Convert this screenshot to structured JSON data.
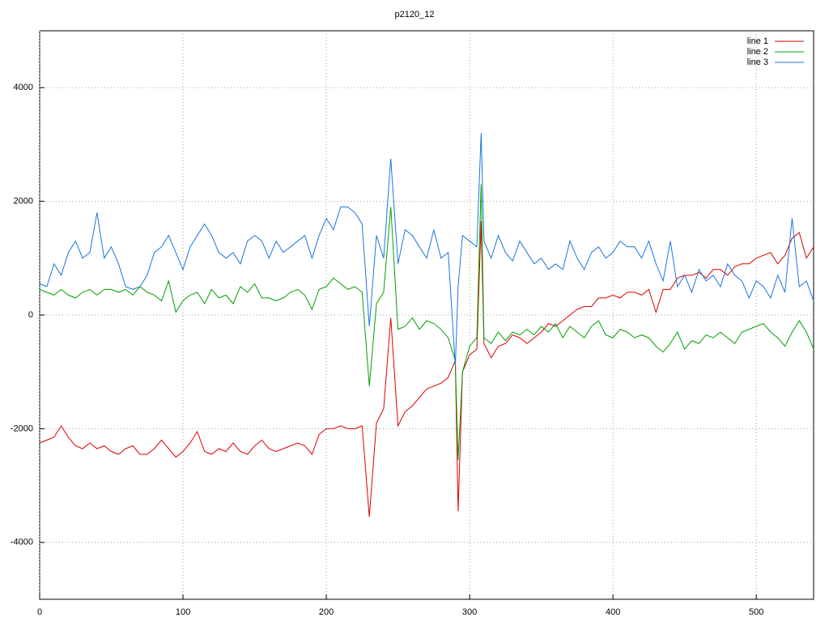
{
  "chart_data": {
    "type": "line",
    "title": "p2120_12",
    "x": [
      0,
      5,
      10,
      15,
      20,
      25,
      30,
      35,
      40,
      45,
      50,
      55,
      60,
      65,
      70,
      75,
      80,
      85,
      90,
      95,
      100,
      105,
      110,
      115,
      120,
      125,
      130,
      135,
      140,
      145,
      150,
      155,
      160,
      165,
      170,
      175,
      180,
      185,
      190,
      195,
      200,
      205,
      210,
      215,
      220,
      225,
      230,
      235,
      240,
      245,
      250,
      255,
      260,
      265,
      270,
      275,
      280,
      285,
      290,
      292,
      295,
      300,
      305,
      308,
      310,
      315,
      320,
      325,
      330,
      335,
      340,
      345,
      350,
      355,
      360,
      365,
      370,
      375,
      380,
      385,
      390,
      395,
      400,
      405,
      410,
      415,
      420,
      425,
      430,
      435,
      440,
      445,
      450,
      455,
      460,
      465,
      470,
      475,
      480,
      485,
      490,
      495,
      500,
      505,
      510,
      515,
      520,
      525,
      530,
      535,
      540
    ],
    "series": [
      {
        "name": "line 1",
        "color": "#dd0000",
        "values": [
          -2250,
          -2200,
          -2150,
          -1950,
          -2150,
          -2300,
          -2350,
          -2250,
          -2350,
          -2300,
          -2400,
          -2450,
          -2350,
          -2300,
          -2450,
          -2450,
          -2350,
          -2200,
          -2350,
          -2500,
          -2400,
          -2250,
          -2050,
          -2400,
          -2450,
          -2350,
          -2400,
          -2250,
          -2400,
          -2450,
          -2300,
          -2200,
          -2350,
          -2400,
          -2350,
          -2300,
          -2250,
          -2300,
          -2450,
          -2100,
          -2000,
          -2000,
          -1950,
          -2000,
          -2000,
          -1950,
          -3550,
          -1900,
          -1650,
          -50,
          -1950,
          -1700,
          -1600,
          -1450,
          -1300,
          -1250,
          -1200,
          -1100,
          -800,
          -3450,
          -1000,
          -700,
          -600,
          1650,
          -500,
          -750,
          -550,
          -500,
          -350,
          -400,
          -500,
          -400,
          -300,
          -150,
          -200,
          -100,
          0,
          100,
          150,
          150,
          300,
          300,
          350,
          300,
          400,
          400,
          350,
          450,
          50,
          450,
          450,
          650,
          700,
          700,
          750,
          650,
          800,
          800,
          700,
          850,
          900,
          900,
          1000,
          1050,
          1100,
          900,
          1050,
          1350,
          1450,
          1000,
          1200
        ]
      },
      {
        "name": "line 2",
        "color": "#00a000",
        "values": [
          450,
          400,
          350,
          450,
          350,
          300,
          400,
          450,
          350,
          450,
          450,
          400,
          450,
          350,
          500,
          400,
          350,
          250,
          600,
          50,
          250,
          350,
          400,
          200,
          450,
          300,
          350,
          200,
          500,
          400,
          550,
          300,
          300,
          250,
          300,
          400,
          450,
          350,
          100,
          450,
          500,
          650,
          550,
          450,
          500,
          400,
          -1250,
          200,
          400,
          1900,
          -250,
          -200,
          -50,
          -250,
          -100,
          -150,
          -250,
          -400,
          -800,
          -2550,
          -1000,
          -550,
          -400,
          2300,
          -400,
          -500,
          -300,
          -450,
          -300,
          -350,
          -250,
          -350,
          -200,
          -300,
          -150,
          -400,
          -200,
          -300,
          -400,
          -200,
          -100,
          -350,
          -400,
          -250,
          -300,
          -400,
          -350,
          -400,
          -550,
          -650,
          -500,
          -300,
          -600,
          -450,
          -500,
          -350,
          -400,
          -300,
          -400,
          -500,
          -300,
          -250,
          -200,
          -150,
          -300,
          -400,
          -550,
          -300,
          -100,
          -300,
          -600
        ]
      },
      {
        "name": "line 3",
        "color": "#1a75e0",
        "values": [
          550,
          500,
          900,
          700,
          1100,
          1300,
          1000,
          1100,
          1800,
          1000,
          1200,
          900,
          500,
          450,
          500,
          700,
          1100,
          1200,
          1400,
          1100,
          800,
          1200,
          1400,
          1600,
          1400,
          1100,
          1000,
          1100,
          900,
          1300,
          1400,
          1300,
          1000,
          1300,
          1100,
          1200,
          1300,
          1400,
          1000,
          1400,
          1700,
          1500,
          1900,
          1900,
          1800,
          1600,
          -200,
          1400,
          1000,
          2750,
          900,
          1500,
          1400,
          1200,
          1000,
          1500,
          1000,
          1100,
          -900,
          500,
          1400,
          1300,
          1200,
          3200,
          1300,
          1000,
          1400,
          1100,
          950,
          1300,
          1100,
          900,
          1000,
          800,
          900,
          800,
          1300,
          1000,
          800,
          1100,
          1200,
          1000,
          1100,
          1300,
          1200,
          1200,
          1000,
          1300,
          900,
          600,
          1300,
          500,
          700,
          400,
          800,
          600,
          700,
          500,
          900,
          700,
          600,
          300,
          600,
          500,
          300,
          700,
          400,
          1700,
          500,
          600,
          250
        ]
      }
    ],
    "xlim": [
      0,
      540
    ],
    "ylim": [
      -5000,
      5000
    ],
    "xticks": [
      0,
      100,
      200,
      300,
      400,
      500
    ],
    "yticks": [
      -4000,
      -2000,
      0,
      2000,
      4000
    ],
    "grid": true,
    "legend": "top-right"
  }
}
